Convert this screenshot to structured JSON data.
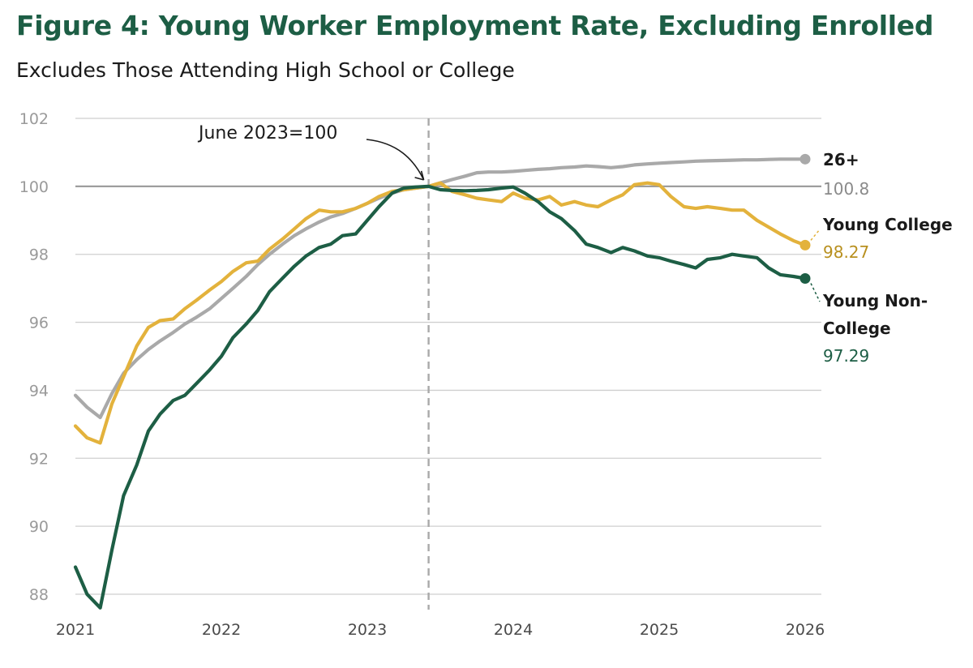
{
  "title": "Figure 4: Young Worker Employment Rate, Excluding Enrolled",
  "subtitle": "Excludes Those Attending High School or College",
  "chart_data": {
    "type": "line",
    "xlabel": "",
    "ylabel": "",
    "xlim": [
      2021.0,
      2026.0
    ],
    "ylim": [
      88,
      102
    ],
    "yticks": [
      88,
      90,
      92,
      94,
      96,
      98,
      100,
      102
    ],
    "xticks": [
      2021,
      2022,
      2023,
      2024,
      2025,
      2026
    ],
    "grid": true,
    "reference_line_y": 100,
    "reference_date_x": 2023.42,
    "annotation": "June 2023=100",
    "series": [
      {
        "name": "26+",
        "color": "#a9a9a9",
        "end_value_label": "100.8",
        "points": [
          [
            2021.0,
            93.85
          ],
          [
            2021.08,
            93.5
          ],
          [
            2021.17,
            93.2
          ],
          [
            2021.25,
            93.9
          ],
          [
            2021.33,
            94.5
          ],
          [
            2021.42,
            94.9
          ],
          [
            2021.5,
            95.2
          ],
          [
            2021.58,
            95.45
          ],
          [
            2021.67,
            95.7
          ],
          [
            2021.75,
            95.95
          ],
          [
            2021.83,
            96.15
          ],
          [
            2021.92,
            96.4
          ],
          [
            2022.0,
            96.7
          ],
          [
            2022.08,
            97.0
          ],
          [
            2022.17,
            97.35
          ],
          [
            2022.25,
            97.7
          ],
          [
            2022.33,
            98.0
          ],
          [
            2022.42,
            98.3
          ],
          [
            2022.5,
            98.55
          ],
          [
            2022.58,
            98.75
          ],
          [
            2022.67,
            98.95
          ],
          [
            2022.75,
            99.1
          ],
          [
            2022.83,
            99.2
          ],
          [
            2022.92,
            99.35
          ],
          [
            2023.0,
            99.5
          ],
          [
            2023.08,
            99.65
          ],
          [
            2023.17,
            99.8
          ],
          [
            2023.25,
            99.9
          ],
          [
            2023.33,
            99.95
          ],
          [
            2023.42,
            100.0
          ],
          [
            2023.5,
            100.1
          ],
          [
            2023.58,
            100.2
          ],
          [
            2023.67,
            100.3
          ],
          [
            2023.75,
            100.4
          ],
          [
            2023.83,
            100.42
          ],
          [
            2023.92,
            100.42
          ],
          [
            2024.0,
            100.44
          ],
          [
            2024.08,
            100.47
          ],
          [
            2024.17,
            100.5
          ],
          [
            2024.25,
            100.52
          ],
          [
            2024.33,
            100.55
          ],
          [
            2024.42,
            100.57
          ],
          [
            2024.5,
            100.6
          ],
          [
            2024.58,
            100.58
          ],
          [
            2024.67,
            100.55
          ],
          [
            2024.75,
            100.58
          ],
          [
            2024.83,
            100.63
          ],
          [
            2024.92,
            100.66
          ],
          [
            2025.0,
            100.68
          ],
          [
            2025.08,
            100.7
          ],
          [
            2025.17,
            100.72
          ],
          [
            2025.25,
            100.74
          ],
          [
            2025.33,
            100.75
          ],
          [
            2025.42,
            100.76
          ],
          [
            2025.5,
            100.77
          ],
          [
            2025.58,
            100.78
          ],
          [
            2025.67,
            100.78
          ],
          [
            2025.75,
            100.79
          ],
          [
            2025.83,
            100.8
          ],
          [
            2025.92,
            100.8
          ],
          [
            2026.0,
            100.8
          ]
        ]
      },
      {
        "name": "Young College",
        "color": "#e3b23c",
        "end_value_label": "98.27",
        "points": [
          [
            2021.0,
            92.95
          ],
          [
            2021.08,
            92.6
          ],
          [
            2021.17,
            92.45
          ],
          [
            2021.25,
            93.6
          ],
          [
            2021.33,
            94.4
          ],
          [
            2021.42,
            95.3
          ],
          [
            2021.5,
            95.85
          ],
          [
            2021.58,
            96.05
          ],
          [
            2021.67,
            96.1
          ],
          [
            2021.75,
            96.4
          ],
          [
            2021.83,
            96.65
          ],
          [
            2021.92,
            96.95
          ],
          [
            2022.0,
            97.2
          ],
          [
            2022.08,
            97.5
          ],
          [
            2022.17,
            97.75
          ],
          [
            2022.25,
            97.8
          ],
          [
            2022.33,
            98.15
          ],
          [
            2022.42,
            98.45
          ],
          [
            2022.5,
            98.75
          ],
          [
            2022.58,
            99.05
          ],
          [
            2022.67,
            99.3
          ],
          [
            2022.75,
            99.25
          ],
          [
            2022.83,
            99.25
          ],
          [
            2022.92,
            99.35
          ],
          [
            2023.0,
            99.5
          ],
          [
            2023.08,
            99.7
          ],
          [
            2023.17,
            99.85
          ],
          [
            2023.25,
            99.9
          ],
          [
            2023.33,
            99.95
          ],
          [
            2023.42,
            100.0
          ],
          [
            2023.5,
            100.1
          ],
          [
            2023.58,
            99.85
          ],
          [
            2023.67,
            99.75
          ],
          [
            2023.75,
            99.65
          ],
          [
            2023.83,
            99.6
          ],
          [
            2023.92,
            99.55
          ],
          [
            2024.0,
            99.8
          ],
          [
            2024.08,
            99.65
          ],
          [
            2024.17,
            99.6
          ],
          [
            2024.25,
            99.7
          ],
          [
            2024.33,
            99.45
          ],
          [
            2024.42,
            99.55
          ],
          [
            2024.5,
            99.45
          ],
          [
            2024.58,
            99.4
          ],
          [
            2024.67,
            99.6
          ],
          [
            2024.75,
            99.75
          ],
          [
            2024.83,
            100.05
          ],
          [
            2024.92,
            100.1
          ],
          [
            2025.0,
            100.05
          ],
          [
            2025.08,
            99.7
          ],
          [
            2025.17,
            99.4
          ],
          [
            2025.25,
            99.35
          ],
          [
            2025.33,
            99.4
          ],
          [
            2025.42,
            99.35
          ],
          [
            2025.5,
            99.3
          ],
          [
            2025.58,
            99.3
          ],
          [
            2025.67,
            99.0
          ],
          [
            2025.75,
            98.8
          ],
          [
            2025.83,
            98.6
          ],
          [
            2025.92,
            98.4
          ],
          [
            2026.0,
            98.27
          ]
        ]
      },
      {
        "name": "Young Non-College",
        "color": "#1d5e45",
        "end_value_label": "97.29",
        "points": [
          [
            2021.0,
            88.8
          ],
          [
            2021.08,
            88.0
          ],
          [
            2021.17,
            87.6
          ],
          [
            2021.25,
            89.3
          ],
          [
            2021.33,
            90.9
          ],
          [
            2021.42,
            91.8
          ],
          [
            2021.5,
            92.8
          ],
          [
            2021.58,
            93.3
          ],
          [
            2021.67,
            93.7
          ],
          [
            2021.75,
            93.85
          ],
          [
            2021.83,
            94.2
          ],
          [
            2021.92,
            94.6
          ],
          [
            2022.0,
            95.0
          ],
          [
            2022.08,
            95.55
          ],
          [
            2022.17,
            95.95
          ],
          [
            2022.25,
            96.35
          ],
          [
            2022.33,
            96.9
          ],
          [
            2022.42,
            97.3
          ],
          [
            2022.5,
            97.65
          ],
          [
            2022.58,
            97.95
          ],
          [
            2022.67,
            98.2
          ],
          [
            2022.75,
            98.3
          ],
          [
            2022.83,
            98.55
          ],
          [
            2022.92,
            98.6
          ],
          [
            2023.0,
            99.0
          ],
          [
            2023.08,
            99.4
          ],
          [
            2023.17,
            99.8
          ],
          [
            2023.25,
            99.95
          ],
          [
            2023.33,
            99.98
          ],
          [
            2023.42,
            100.0
          ],
          [
            2023.5,
            99.9
          ],
          [
            2023.58,
            99.88
          ],
          [
            2023.67,
            99.87
          ],
          [
            2023.75,
            99.88
          ],
          [
            2023.83,
            99.9
          ],
          [
            2023.92,
            99.95
          ],
          [
            2024.0,
            99.98
          ],
          [
            2024.08,
            99.8
          ],
          [
            2024.17,
            99.55
          ],
          [
            2024.25,
            99.25
          ],
          [
            2024.33,
            99.05
          ],
          [
            2024.42,
            98.7
          ],
          [
            2024.5,
            98.3
          ],
          [
            2024.58,
            98.2
          ],
          [
            2024.67,
            98.05
          ],
          [
            2024.75,
            98.2
          ],
          [
            2024.83,
            98.1
          ],
          [
            2024.92,
            97.95
          ],
          [
            2025.0,
            97.9
          ],
          [
            2025.08,
            97.8
          ],
          [
            2025.17,
            97.7
          ],
          [
            2025.25,
            97.6
          ],
          [
            2025.33,
            97.85
          ],
          [
            2025.42,
            97.9
          ],
          [
            2025.5,
            98.0
          ],
          [
            2025.58,
            97.95
          ],
          [
            2025.67,
            97.9
          ],
          [
            2025.75,
            97.6
          ],
          [
            2025.83,
            97.4
          ],
          [
            2025.92,
            97.35
          ],
          [
            2026.0,
            97.29
          ]
        ]
      }
    ]
  }
}
